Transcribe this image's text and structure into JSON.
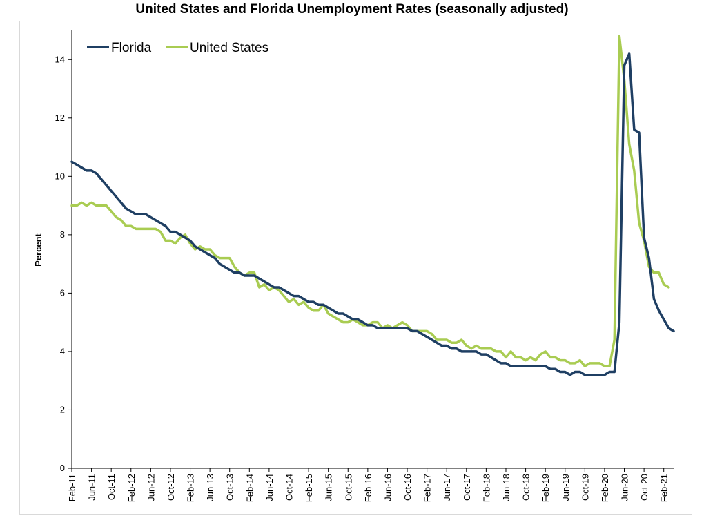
{
  "chart_data": {
    "type": "line",
    "title": "United States and Florida Unemployment Rates (seasonally adjusted)",
    "xlabel": "",
    "ylabel": "Percent",
    "ylim": [
      0,
      15
    ],
    "yticks": [
      0,
      2,
      4,
      6,
      8,
      10,
      12,
      14
    ],
    "x_start": "Feb-11",
    "x_tick_labels": [
      "Feb-11",
      "Jun-11",
      "Oct-11",
      "Feb-12",
      "Jun-12",
      "Oct-12",
      "Feb-13",
      "Jun-13",
      "Oct-13",
      "Feb-14",
      "Jun-14",
      "Oct-14",
      "Feb-15",
      "Jun-15",
      "Oct-15",
      "Feb-16",
      "Jun-16",
      "Oct-16",
      "Feb-17",
      "Jun-17",
      "Oct-17",
      "Feb-18",
      "Jun-18",
      "Oct-18",
      "Feb-19",
      "Jun-19",
      "Oct-19",
      "Feb-20",
      "Jun-20",
      "Oct-20",
      "Feb-21"
    ],
    "grid": false,
    "legend_position": "top-left",
    "series": [
      {
        "name": "Florida",
        "color": "#1f3f63",
        "values": [
          10.5,
          10.4,
          10.3,
          10.2,
          10.2,
          10.1,
          9.9,
          9.7,
          9.5,
          9.3,
          9.1,
          8.9,
          8.8,
          8.7,
          8.7,
          8.7,
          8.6,
          8.5,
          8.4,
          8.3,
          8.1,
          8.1,
          8.0,
          7.9,
          7.8,
          7.6,
          7.5,
          7.4,
          7.3,
          7.2,
          7.0,
          6.9,
          6.8,
          6.7,
          6.7,
          6.6,
          6.6,
          6.6,
          6.5,
          6.4,
          6.3,
          6.2,
          6.2,
          6.1,
          6.0,
          5.9,
          5.9,
          5.8,
          5.7,
          5.7,
          5.6,
          5.6,
          5.5,
          5.4,
          5.3,
          5.3,
          5.2,
          5.1,
          5.1,
          5.0,
          4.9,
          4.9,
          4.8,
          4.8,
          4.8,
          4.8,
          4.8,
          4.8,
          4.8,
          4.7,
          4.7,
          4.6,
          4.5,
          4.4,
          4.3,
          4.2,
          4.2,
          4.1,
          4.1,
          4.0,
          4.0,
          4.0,
          4.0,
          3.9,
          3.9,
          3.8,
          3.7,
          3.6,
          3.6,
          3.5,
          3.5,
          3.5,
          3.5,
          3.5,
          3.5,
          3.5,
          3.5,
          3.4,
          3.4,
          3.3,
          3.3,
          3.2,
          3.3,
          3.3,
          3.2,
          3.2,
          3.2,
          3.2,
          3.2,
          3.3,
          3.3,
          5.0,
          13.8,
          14.2,
          11.6,
          11.5,
          7.9,
          7.2,
          5.8,
          5.4,
          5.1,
          4.8,
          4.7
        ]
      },
      {
        "name": "United States",
        "color": "#a9cc52",
        "values": [
          9.0,
          9.0,
          9.1,
          9.0,
          9.1,
          9.0,
          9.0,
          9.0,
          8.8,
          8.6,
          8.5,
          8.3,
          8.3,
          8.2,
          8.2,
          8.2,
          8.2,
          8.2,
          8.1,
          7.8,
          7.8,
          7.7,
          7.9,
          8.0,
          7.7,
          7.5,
          7.6,
          7.5,
          7.5,
          7.3,
          7.2,
          7.2,
          7.2,
          6.9,
          6.7,
          6.6,
          6.7,
          6.7,
          6.2,
          6.3,
          6.1,
          6.2,
          6.1,
          5.9,
          5.7,
          5.8,
          5.6,
          5.7,
          5.5,
          5.4,
          5.4,
          5.6,
          5.3,
          5.2,
          5.1,
          5.0,
          5.0,
          5.1,
          5.0,
          4.9,
          4.9,
          5.0,
          5.0,
          4.8,
          4.9,
          4.8,
          4.9,
          5.0,
          4.9,
          4.7,
          4.7,
          4.7,
          4.7,
          4.6,
          4.4,
          4.4,
          4.4,
          4.3,
          4.3,
          4.4,
          4.2,
          4.1,
          4.2,
          4.1,
          4.1,
          4.1,
          4.0,
          4.0,
          3.8,
          4.0,
          3.8,
          3.8,
          3.7,
          3.8,
          3.7,
          3.9,
          4.0,
          3.8,
          3.8,
          3.7,
          3.7,
          3.6,
          3.6,
          3.7,
          3.5,
          3.6,
          3.6,
          3.6,
          3.5,
          3.5,
          4.4,
          14.8,
          13.3,
          11.1,
          10.2,
          8.4,
          7.8,
          6.9,
          6.7,
          6.7,
          6.3,
          6.2
        ]
      }
    ]
  }
}
